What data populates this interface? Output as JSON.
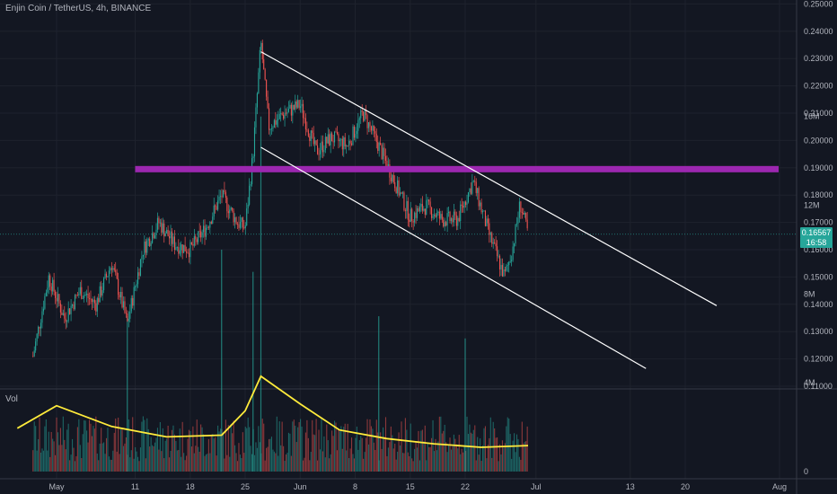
{
  "header": {
    "symbol_title": "Enjin Coin / TetherUS, 4h, BINANCE"
  },
  "volume_pane": {
    "label": "Vol"
  },
  "last_price": {
    "value": "0.16567",
    "countdown": "16:58",
    "color": "#26a69a"
  },
  "colors": {
    "up": "#26a69a",
    "down": "#ef5350",
    "resistance": "#9c27b0",
    "channel": "#ffffff",
    "volume_ma": "#ffeb3b",
    "background": "#131722",
    "grid": "#363a45"
  },
  "chart_data": {
    "type": "candlestick",
    "title": "Enjin Coin / TetherUS, 4h, BINANCE",
    "price_axis": {
      "ticks": [
        "0.25000",
        "0.24000",
        "0.23000",
        "0.22000",
        "0.21000",
        "0.20000",
        "0.19000",
        "0.18000",
        "0.17000",
        "0.16000",
        "0.15000",
        "0.14000",
        "0.13000",
        "0.12000",
        "0.11000"
      ],
      "range": [
        0.108,
        0.25
      ]
    },
    "volume_axis": {
      "ticks": [
        "16M",
        "12M",
        "8M",
        "4M",
        "0"
      ]
    },
    "time_axis": {
      "ticks": [
        "May",
        "11",
        "18",
        "25",
        "Jun",
        "8",
        "15",
        "22",
        "Jul",
        "13",
        "20",
        "Aug"
      ]
    },
    "price_path": [
      {
        "date": "Apr 28",
        "price": 0.121
      },
      {
        "date": "Apr 30",
        "price": 0.15
      },
      {
        "date": "May 2",
        "price": 0.135
      },
      {
        "date": "May 4",
        "price": 0.145
      },
      {
        "date": "May 6",
        "price": 0.14
      },
      {
        "date": "May 8",
        "price": 0.155
      },
      {
        "date": "May 10",
        "price": 0.133
      },
      {
        "date": "May 12",
        "price": 0.16
      },
      {
        "date": "May 14",
        "price": 0.17
      },
      {
        "date": "May 16",
        "price": 0.162
      },
      {
        "date": "May 18",
        "price": 0.16
      },
      {
        "date": "May 20",
        "price": 0.168
      },
      {
        "date": "May 22",
        "price": 0.18
      },
      {
        "date": "May 24",
        "price": 0.17
      },
      {
        "date": "May 25",
        "price": 0.168
      },
      {
        "date": "May 26",
        "price": 0.195
      },
      {
        "date": "May 27",
        "price": 0.236
      },
      {
        "date": "May 28",
        "price": 0.205
      },
      {
        "date": "May 30",
        "price": 0.21
      },
      {
        "date": "Jun 1",
        "price": 0.213
      },
      {
        "date": "Jun 3",
        "price": 0.196
      },
      {
        "date": "Jun 5",
        "price": 0.201
      },
      {
        "date": "Jun 7",
        "price": 0.198
      },
      {
        "date": "Jun 9",
        "price": 0.21
      },
      {
        "date": "Jun 11",
        "price": 0.198
      },
      {
        "date": "Jun 13",
        "price": 0.185
      },
      {
        "date": "Jun 15",
        "price": 0.172
      },
      {
        "date": "Jun 17",
        "price": 0.176
      },
      {
        "date": "Jun 19",
        "price": 0.171
      },
      {
        "date": "Jun 21",
        "price": 0.171
      },
      {
        "date": "Jun 23",
        "price": 0.185
      },
      {
        "date": "Jun 25",
        "price": 0.166
      },
      {
        "date": "Jun 27",
        "price": 0.15
      },
      {
        "date": "Jun 28",
        "price": 0.16
      },
      {
        "date": "Jun 29",
        "price": 0.177
      },
      {
        "date": "Jun 30",
        "price": 0.1657
      }
    ],
    "volume_ma_path": [
      {
        "date": "Apr 26",
        "value": 2.5
      },
      {
        "date": "May 1",
        "value": 3.8
      },
      {
        "date": "May 8",
        "value": 2.6
      },
      {
        "date": "May 15",
        "value": 2.0
      },
      {
        "date": "May 22",
        "value": 2.1
      },
      {
        "date": "May 25",
        "value": 3.5
      },
      {
        "date": "May 27",
        "value": 5.5
      },
      {
        "date": "Jun 1",
        "value": 3.9
      },
      {
        "date": "Jun 6",
        "value": 2.4
      },
      {
        "date": "Jun 12",
        "value": 1.9
      },
      {
        "date": "Jun 18",
        "value": 1.6
      },
      {
        "date": "Jun 24",
        "value": 1.4
      },
      {
        "date": "Jun 30",
        "value": 1.5
      }
    ],
    "volume_spikes": [
      {
        "date": "May 10",
        "value": 7
      },
      {
        "date": "May 22",
        "value": 10
      },
      {
        "date": "May 26",
        "value": 9
      },
      {
        "date": "May 27",
        "value": 16
      },
      {
        "date": "Jun 11",
        "value": 7
      },
      {
        "date": "Jun 22",
        "value": 6
      }
    ],
    "annotations": {
      "horizontal_zone": {
        "price": 0.1895,
        "from": "May 11",
        "to": "Aug"
      },
      "channel_upper": {
        "from": {
          "date": "May 27",
          "price": 0.2325
        },
        "to": {
          "date": "Jul 24",
          "price": 0.1395
        }
      },
      "channel_lower": {
        "from": {
          "date": "May 27",
          "price": 0.1975
        },
        "to": {
          "date": "Jul 15",
          "price": 0.1165
        }
      }
    }
  }
}
